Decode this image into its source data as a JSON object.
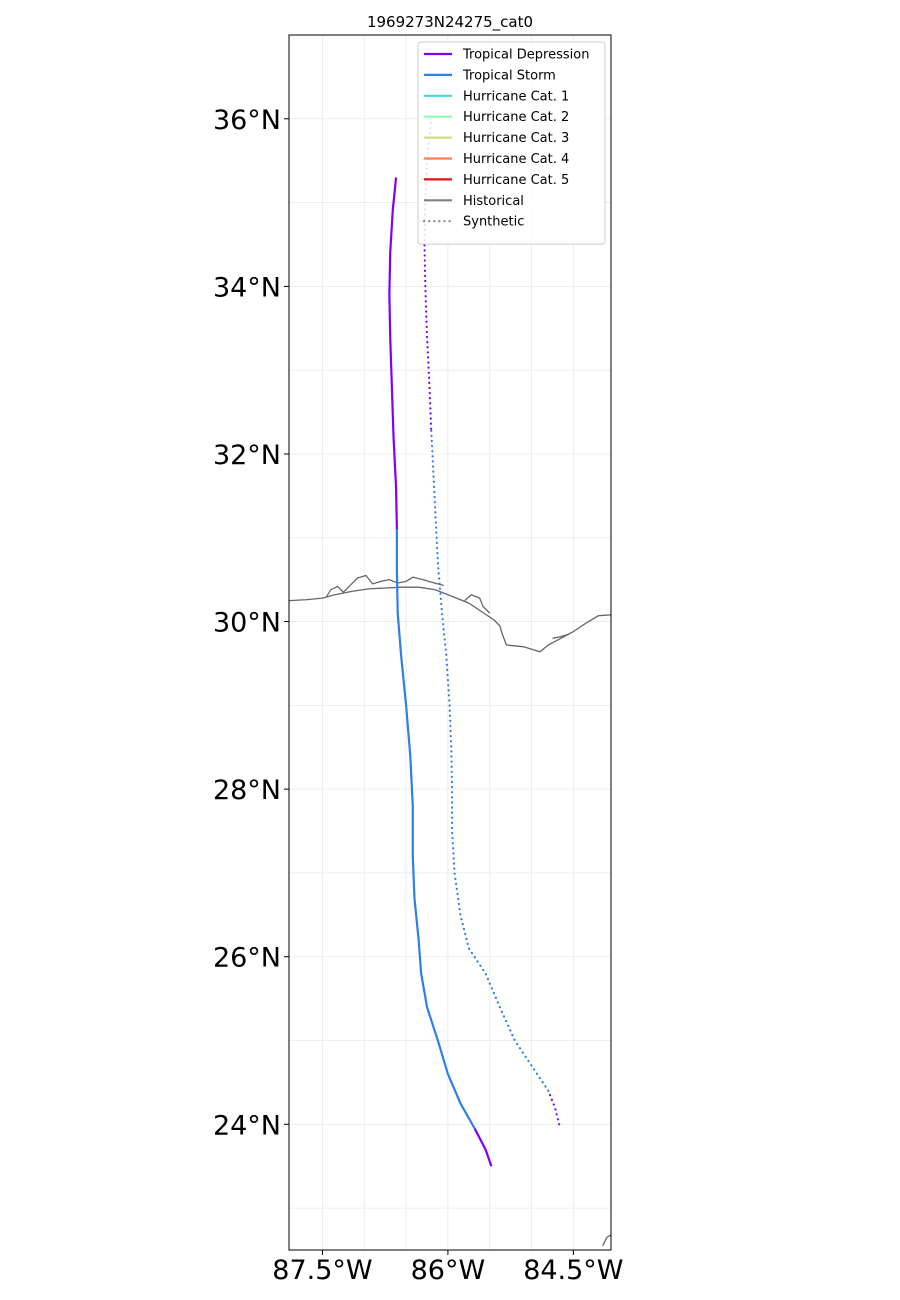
{
  "chart_data": {
    "type": "line",
    "title": "1969273N24275_cat0",
    "xlabel": "",
    "ylabel": "",
    "xlim": [
      -87.9,
      -84.05
    ],
    "ylim": [
      22.5,
      37.0
    ],
    "xticks": [
      {
        "value": -87.5,
        "label": "87.5°W"
      },
      {
        "value": -86.0,
        "label": "86°W"
      },
      {
        "value": -84.5,
        "label": "84.5°W"
      }
    ],
    "yticks": [
      {
        "value": 24,
        "label": "24°N"
      },
      {
        "value": 26,
        "label": "26°N"
      },
      {
        "value": 28,
        "label": "28°N"
      },
      {
        "value": 30,
        "label": "30°N"
      },
      {
        "value": 32,
        "label": "32°N"
      },
      {
        "value": 34,
        "label": "34°N"
      },
      {
        "value": 36,
        "label": "36°N"
      }
    ],
    "grid": true,
    "legend_position": "top-right",
    "legend": [
      {
        "label": "Tropical Depression",
        "color": "#7f00ff",
        "style": "solid"
      },
      {
        "label": "Tropical Storm",
        "color": "#2f7fe8",
        "style": "solid"
      },
      {
        "label": "Hurricane Cat. 1",
        "color": "#40d8d8",
        "style": "solid"
      },
      {
        "label": "Hurricane Cat. 2",
        "color": "#90f8b0",
        "style": "solid"
      },
      {
        "label": "Hurricane Cat. 3",
        "color": "#d4dc8c",
        "style": "solid"
      },
      {
        "label": "Hurricane Cat. 4",
        "color": "#ff8048",
        "style": "solid"
      },
      {
        "label": "Hurricane Cat. 5",
        "color": "#e81010",
        "style": "solid"
      },
      {
        "label": "Historical",
        "color": "#808080",
        "style": "solid"
      },
      {
        "label": "Synthetic",
        "color": "#808080",
        "style": "dotted"
      }
    ],
    "series": [
      {
        "track": "historical",
        "segments": [
          {
            "category": "Tropical Depression",
            "color": "#7f00ff",
            "points": [
              [
                -85.48,
                23.5
              ],
              [
                -85.55,
                23.7
              ],
              [
                -85.68,
                23.95
              ]
            ]
          },
          {
            "category": "Tropical Storm",
            "color": "#2f7fe8",
            "points": [
              [
                -85.68,
                23.95
              ],
              [
                -85.85,
                24.25
              ],
              [
                -86.0,
                24.6
              ],
              [
                -86.12,
                25.0
              ],
              [
                -86.25,
                25.4
              ],
              [
                -86.32,
                25.8
              ],
              [
                -86.35,
                26.2
              ],
              [
                -86.4,
                26.7
              ],
              [
                -86.42,
                27.2
              ],
              [
                -86.42,
                27.8
              ],
              [
                -86.45,
                28.4
              ],
              [
                -86.5,
                29.0
              ],
              [
                -86.56,
                29.6
              ],
              [
                -86.6,
                30.1
              ],
              [
                -86.61,
                30.6
              ],
              [
                -86.61,
                31.1
              ]
            ]
          },
          {
            "category": "Tropical Depression",
            "color": "#7f00ff",
            "points": [
              [
                -86.61,
                31.1
              ],
              [
                -86.62,
                31.6
              ],
              [
                -86.65,
                32.2
              ],
              [
                -86.67,
                32.8
              ],
              [
                -86.69,
                33.4
              ],
              [
                -86.7,
                33.9
              ],
              [
                -86.69,
                34.4
              ],
              [
                -86.66,
                34.9
              ],
              [
                -86.62,
                35.3
              ]
            ]
          }
        ]
      },
      {
        "track": "synthetic",
        "segments": [
          {
            "category": "Tropical Depression",
            "color": "#7f00ff",
            "points": [
              [
                -84.67,
                24.0
              ],
              [
                -84.72,
                24.2
              ],
              [
                -84.8,
                24.4
              ]
            ]
          },
          {
            "category": "Tropical Storm",
            "color": "#2f7fe8",
            "points": [
              [
                -84.8,
                24.4
              ],
              [
                -85.0,
                24.7
              ],
              [
                -85.2,
                25.0
              ],
              [
                -85.38,
                25.4
              ],
              [
                -85.55,
                25.8
              ],
              [
                -85.75,
                26.1
              ],
              [
                -85.85,
                26.5
              ],
              [
                -85.92,
                27.0
              ],
              [
                -85.95,
                27.5
              ],
              [
                -85.95,
                28.0
              ],
              [
                -85.96,
                28.5
              ],
              [
                -85.98,
                29.0
              ],
              [
                -86.02,
                29.6
              ],
              [
                -86.07,
                30.1
              ],
              [
                -86.12,
                30.7
              ],
              [
                -86.15,
                31.3
              ],
              [
                -86.18,
                31.9
              ],
              [
                -86.2,
                32.3
              ]
            ]
          },
          {
            "category": "Tropical Depression",
            "color": "#7f00ff",
            "points": [
              [
                -86.2,
                32.3
              ],
              [
                -86.22,
                32.8
              ],
              [
                -86.25,
                33.4
              ],
              [
                -86.27,
                34.0
              ],
              [
                -86.28,
                34.5
              ],
              [
                -86.27,
                35.0
              ],
              [
                -86.25,
                35.5
              ],
              [
                -86.2,
                36.0
              ]
            ]
          }
        ]
      }
    ],
    "coastline": [
      [
        [
          -87.9,
          30.25
        ],
        [
          -87.7,
          30.26
        ],
        [
          -87.5,
          30.28
        ],
        [
          -87.35,
          30.32
        ],
        [
          -87.15,
          30.36
        ],
        [
          -86.95,
          30.39
        ],
        [
          -86.75,
          30.4
        ],
        [
          -86.55,
          30.41
        ],
        [
          -86.35,
          30.41
        ],
        [
          -86.15,
          30.38
        ],
        [
          -85.95,
          30.3
        ],
        [
          -85.75,
          30.22
        ],
        [
          -85.6,
          30.12
        ],
        [
          -85.45,
          30.02
        ],
        [
          -85.38,
          29.95
        ],
        [
          -85.35,
          29.85
        ],
        [
          -85.3,
          29.72
        ],
        [
          -85.1,
          29.7
        ],
        [
          -84.9,
          29.64
        ],
        [
          -84.8,
          29.72
        ],
        [
          -84.65,
          29.8
        ],
        [
          -84.5,
          29.88
        ],
        [
          -84.35,
          29.98
        ],
        [
          -84.2,
          30.07
        ],
        [
          -84.05,
          30.08
        ]
      ],
      [
        [
          -87.45,
          30.3
        ],
        [
          -87.4,
          30.38
        ],
        [
          -87.32,
          30.42
        ],
        [
          -87.25,
          30.35
        ],
        [
          -87.15,
          30.45
        ],
        [
          -87.08,
          30.52
        ],
        [
          -86.98,
          30.55
        ],
        [
          -86.9,
          30.45
        ],
        [
          -86.8,
          30.48
        ],
        [
          -86.7,
          30.5
        ],
        [
          -86.6,
          30.46
        ],
        [
          -86.5,
          30.48
        ],
        [
          -86.42,
          30.53
        ],
        [
          -86.3,
          30.5
        ],
        [
          -86.2,
          30.47
        ],
        [
          -86.05,
          30.43
        ]
      ],
      [
        [
          -85.8,
          30.25
        ],
        [
          -85.72,
          30.32
        ],
        [
          -85.62,
          30.28
        ],
        [
          -85.58,
          30.18
        ],
        [
          -85.5,
          30.1
        ]
      ],
      [
        [
          -84.75,
          29.8
        ],
        [
          -84.65,
          29.82
        ],
        [
          -84.55,
          29.85
        ]
      ],
      [
        [
          -84.15,
          22.55
        ],
        [
          -84.1,
          22.65
        ],
        [
          -84.05,
          22.68
        ]
      ]
    ]
  }
}
